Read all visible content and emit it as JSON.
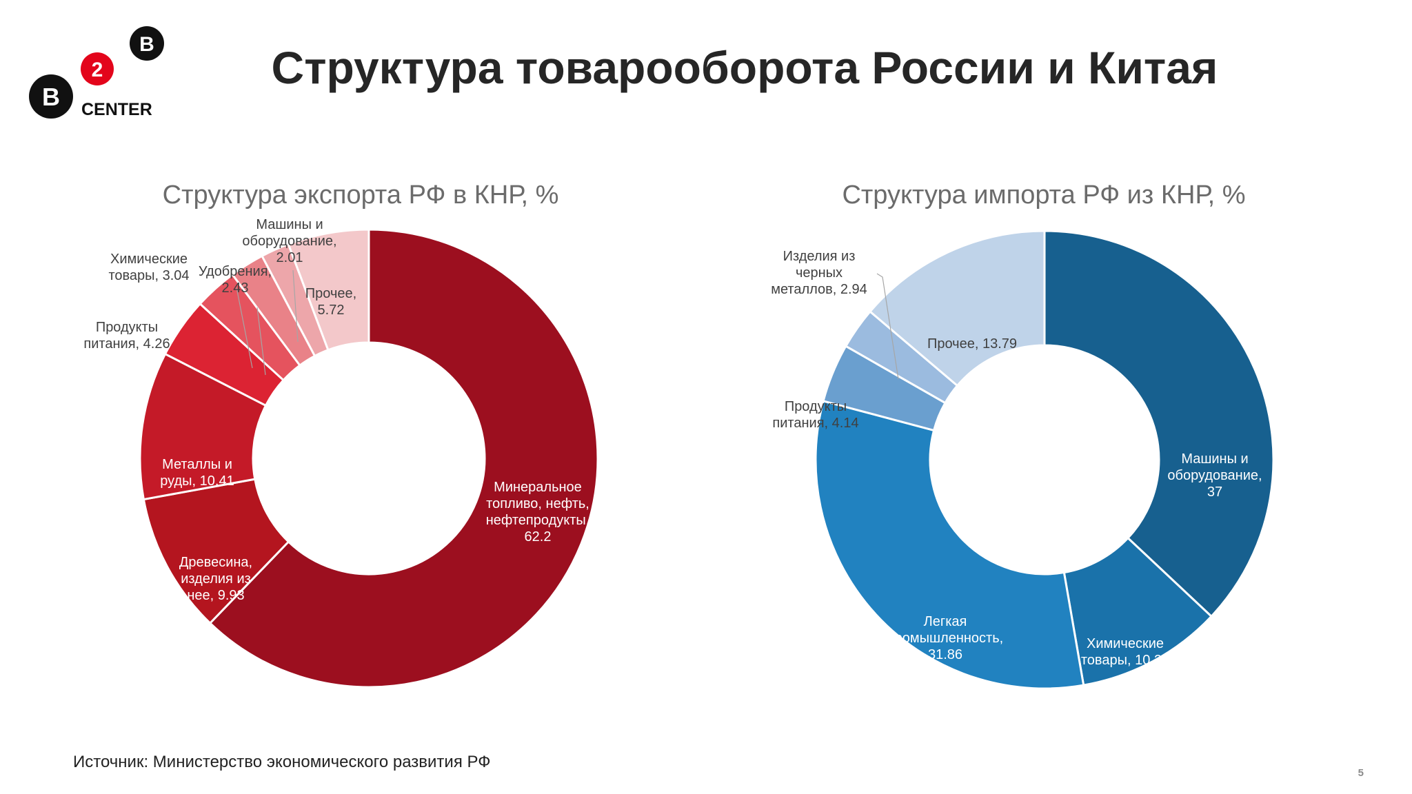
{
  "logo": {
    "letter_top": "B",
    "number": "2",
    "letter_left": "B",
    "text": "CENTER"
  },
  "page_title": "Структура товарооборота России и Китая",
  "source_note": "Источник: Министерство экономического развития РФ",
  "page_number": "5",
  "chart_data": [
    {
      "type": "pie",
      "title": "Структура экспорта РФ в КНР, %",
      "donut": true,
      "start": "12 o'clock, clockwise",
      "slices": [
        {
          "label": [
            "Минеральное",
            "топливо, нефть,",
            "нефтепродукты,",
            "62.2"
          ],
          "name": "Минеральное топливо, нефть, нефтепродукты",
          "value": 62.2,
          "color": "#9c0f1f",
          "label_color": "#ffffff"
        },
        {
          "label": [
            "Древесина,",
            "изделия из",
            "нее, 9.93"
          ],
          "name": "Древесина, изделия из нее",
          "value": 9.93,
          "color": "#b4151f",
          "label_color": "#ffffff"
        },
        {
          "label": [
            "Металлы и",
            "руды, 10.41"
          ],
          "name": "Металлы и руды",
          "value": 10.41,
          "color": "#c41a28",
          "label_color": "#ffffff"
        },
        {
          "label": [
            "Продукты",
            "питания, 4.26"
          ],
          "name": "Продукты питания",
          "value": 4.26,
          "color": "#dc2333",
          "label_color": "#404040"
        },
        {
          "label": [
            "Химические",
            "товары, 3.04"
          ],
          "name": "Химические товары",
          "value": 3.04,
          "color": "#e5535e",
          "label_color": "#404040"
        },
        {
          "label": [
            "Удобрения,",
            "2.43"
          ],
          "name": "Удобрения",
          "value": 2.43,
          "color": "#e98288",
          "label_color": "#404040"
        },
        {
          "label": [
            "Машины и",
            "оборудование,",
            "2.01"
          ],
          "name": "Машины и оборудование",
          "value": 2.01,
          "color": "#eda6aa",
          "label_color": "#404040"
        },
        {
          "label": [
            "Прочее,",
            "5.72"
          ],
          "name": "Прочее",
          "value": 5.72,
          "color": "#f3c8ca",
          "label_color": "#404040"
        }
      ]
    },
    {
      "type": "pie",
      "title": "Структура импорта РФ из КНР, %",
      "donut": true,
      "start": "12 o'clock, clockwise",
      "slices": [
        {
          "label": [
            "Машины и",
            "оборудование,",
            "37"
          ],
          "name": "Машины и оборудование",
          "value": 37,
          "color": "#17608f",
          "label_color": "#ffffff"
        },
        {
          "label": [
            "Химические",
            "товары, 10.27"
          ],
          "name": "Химические товары",
          "value": 10.27,
          "color": "#1a72aa",
          "label_color": "#ffffff"
        },
        {
          "label": [
            "Легкая",
            "промышленность,",
            "31.86"
          ],
          "name": "Легкая промышленность",
          "value": 31.86,
          "color": "#2182c0",
          "label_color": "#ffffff"
        },
        {
          "label": [
            "Продукты",
            "питания, 4.14"
          ],
          "name": "Продукты питания",
          "value": 4.14,
          "color": "#6a9fcf",
          "label_color": "#404040"
        },
        {
          "label": [
            "Изделия из",
            "черных",
            "металлов, 2.94"
          ],
          "name": "Изделия из черных металлов",
          "value": 2.94,
          "color": "#9bbbdf",
          "label_color": "#404040"
        },
        {
          "label": [
            "Прочее, 13.79"
          ],
          "name": "Прочее",
          "value": 13.79,
          "color": "#bfd3e9",
          "label_color": "#404040"
        }
      ]
    }
  ]
}
